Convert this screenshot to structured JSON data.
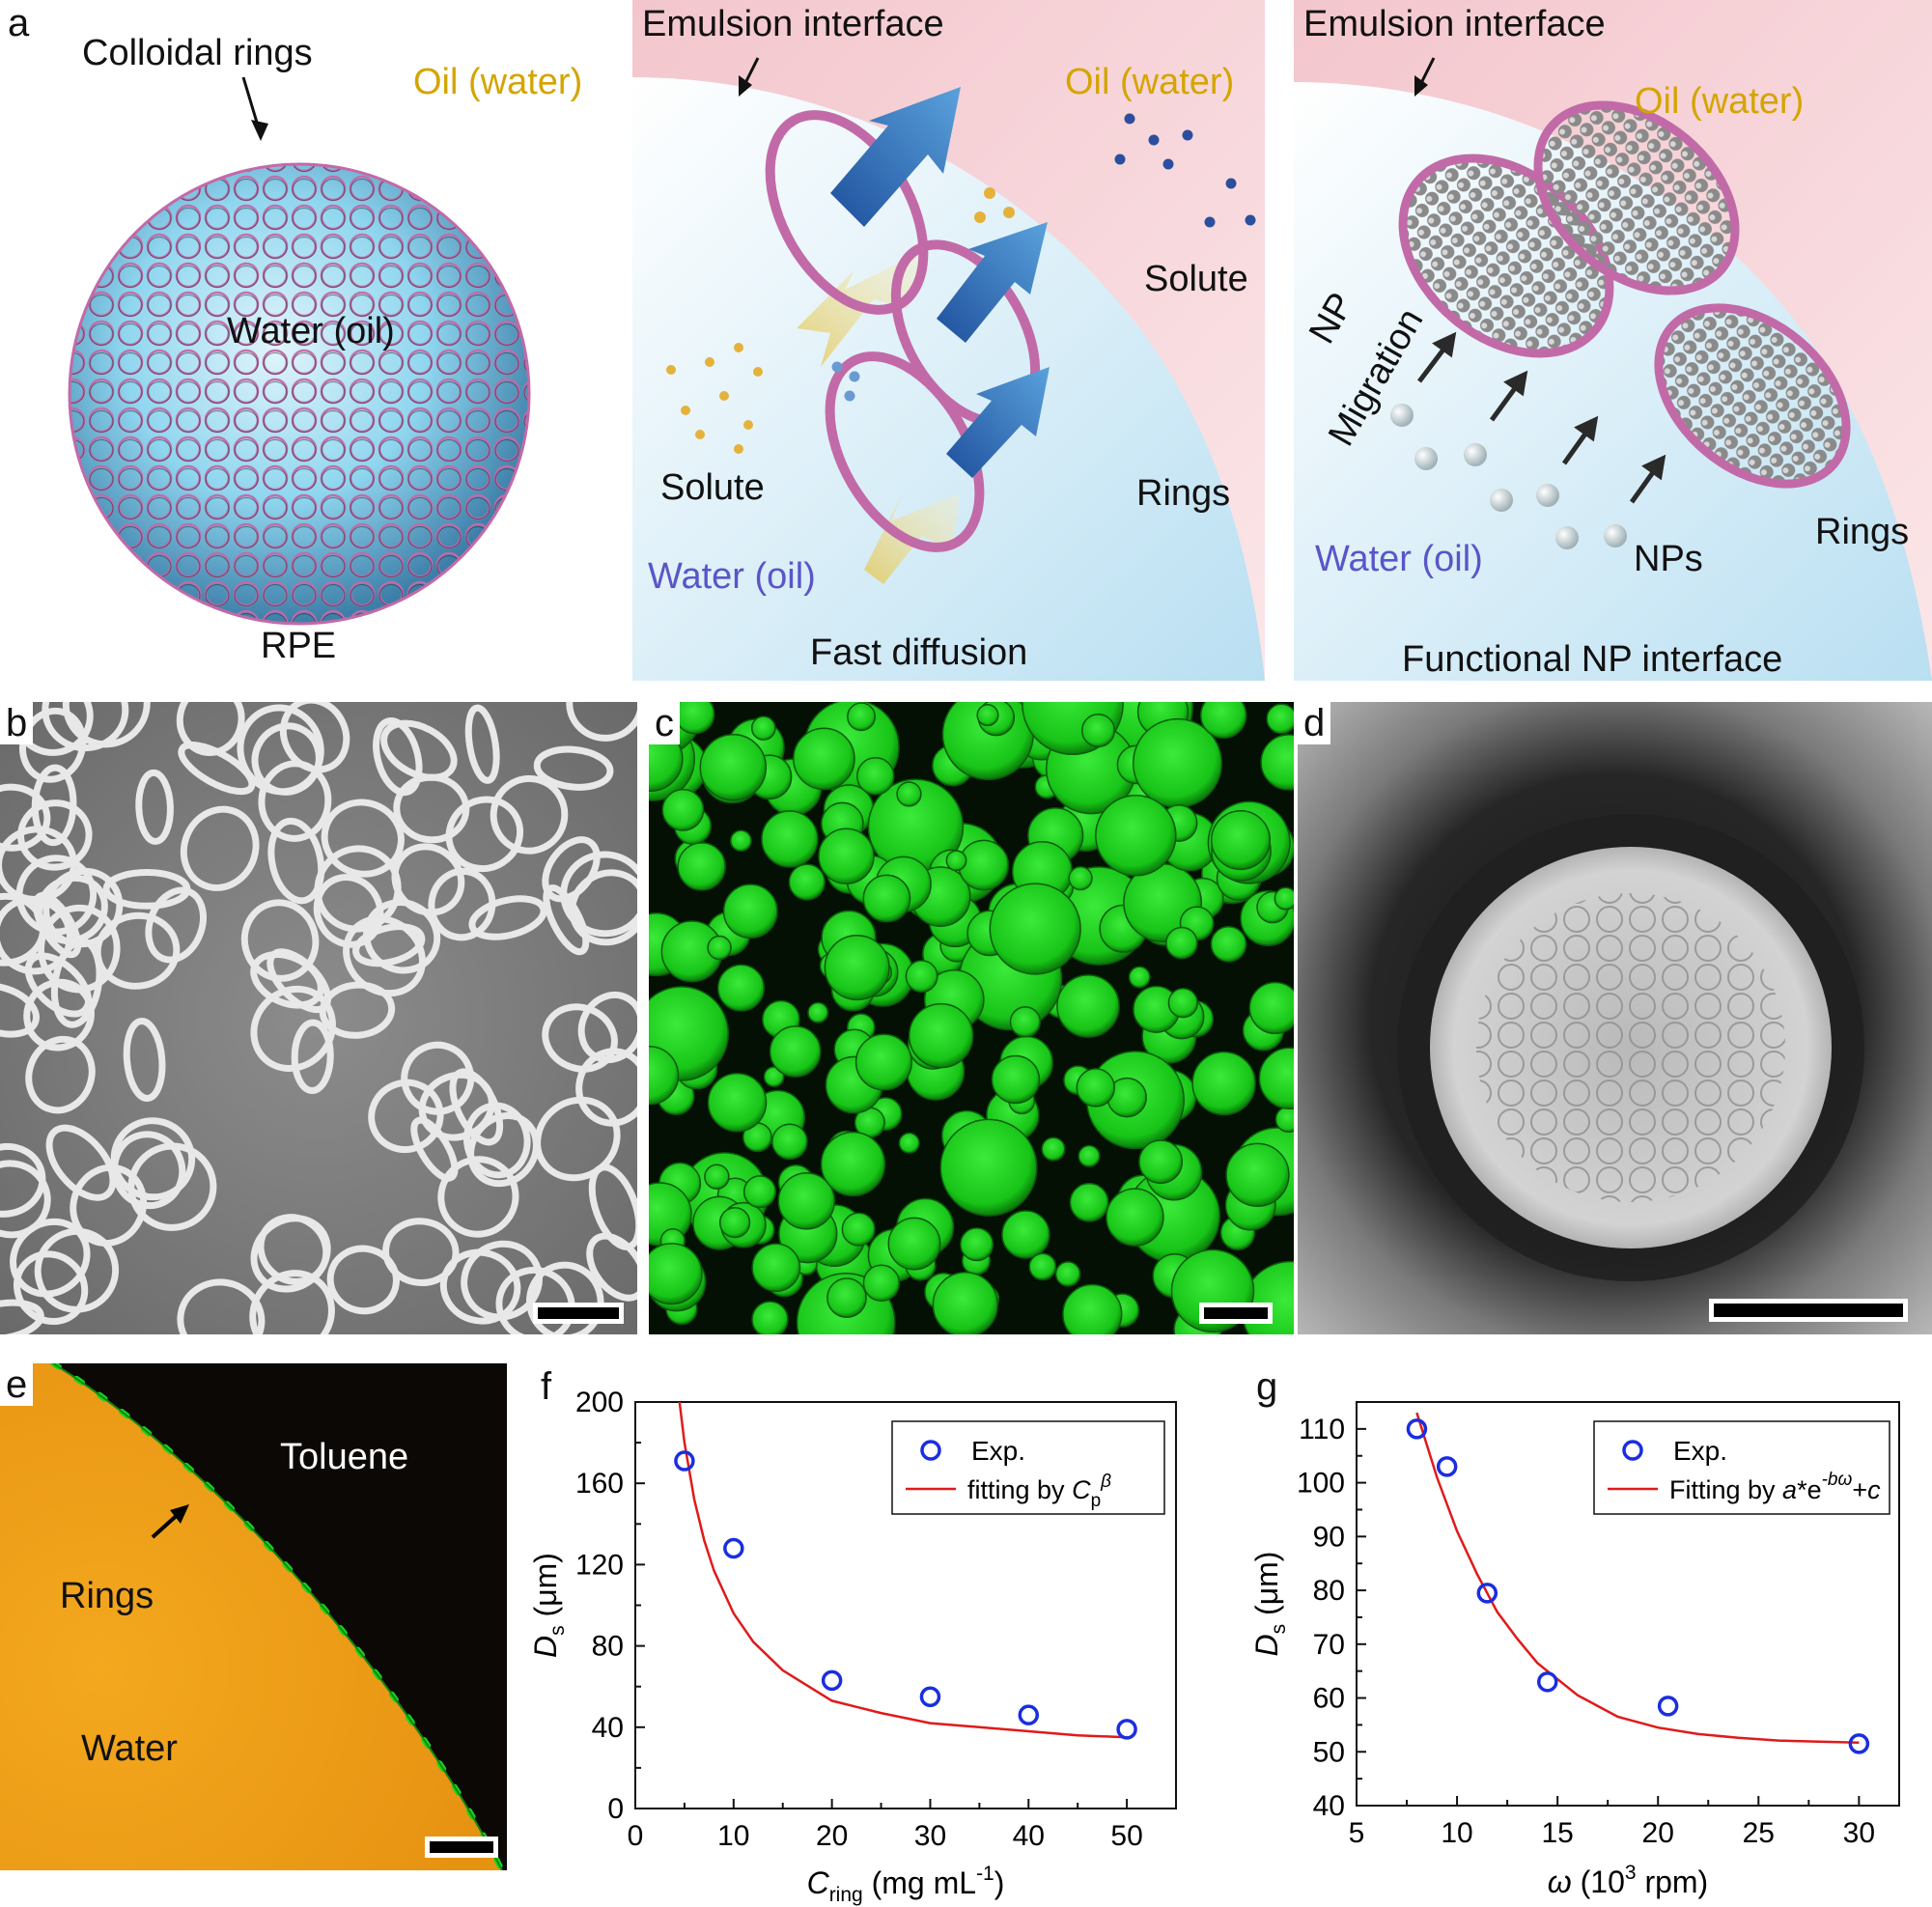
{
  "panels": {
    "a": {
      "letter": "a",
      "left": {
        "colloidal_rings": "Colloidal rings",
        "oil_water": "Oil (water)",
        "water_oil": "Water (oil)",
        "caption": "RPE"
      },
      "middle": {
        "interface": "Emulsion interface",
        "oil_water": "Oil (water)",
        "solute_right": "Solute",
        "solute_left": "Solute",
        "rings": "Rings",
        "water_oil": "Water (oil)",
        "caption": "Fast diffusion"
      },
      "right": {
        "interface": "Emulsion interface",
        "oil_water": "Oil (water)",
        "np": "NP",
        "migration": "Migration",
        "water_oil": "Water (oil)",
        "nps": "NPs",
        "rings": "Rings",
        "caption": "Functional NP interface"
      }
    },
    "b": {
      "letter": "b"
    },
    "c": {
      "letter": "c"
    },
    "d": {
      "letter": "d"
    },
    "e": {
      "letter": "e",
      "toluene": "Toluene",
      "rings": "Rings",
      "water": "Water"
    },
    "f": {
      "letter": "f"
    },
    "g": {
      "letter": "g"
    }
  },
  "colors": {
    "oil": "#f6d3d6",
    "water": "#cfe8f6",
    "ring": "#c26aa8",
    "solute_yellow": "#e4b23a",
    "solute_blue": "#2b4f9e",
    "arrow_blue": "#2f6fbf",
    "arrow_yellow": "#e8d27a",
    "fluor_green": "#19d11b",
    "fit_red": "#e01a1a",
    "marker_blue": "#1a2ee0",
    "orange": "#f0a21a"
  },
  "chart_data": [
    {
      "panel": "f",
      "type": "scatter",
      "xlabel": "C_ring (mg mL^-1)",
      "ylabel": "D_s (μm)",
      "xlim": [
        0,
        55
      ],
      "ylim": [
        0,
        200
      ],
      "x_ticks": [
        0,
        10,
        20,
        30,
        40,
        50
      ],
      "y_ticks": [
        0,
        40,
        80,
        120,
        160,
        200
      ],
      "x_tick_labels": [
        "0",
        "10",
        "20",
        "30",
        "40",
        "50"
      ],
      "y_tick_labels": [
        "0",
        "40",
        "80",
        "120",
        "160",
        "200"
      ],
      "legend_position": "top-right",
      "legend": {
        "exp": "Exp.",
        "fit_prefix": "fitting by "
      },
      "series": [
        {
          "name": "Exp.",
          "kind": "markers",
          "x": [
            5,
            10,
            20,
            30,
            40,
            50
          ],
          "y": [
            171,
            128,
            63,
            55,
            46,
            39
          ]
        },
        {
          "name": "fitting by Cp^β",
          "kind": "line",
          "x": [
            4.5,
            5,
            6,
            7,
            8,
            10,
            12,
            15,
            20,
            25,
            30,
            35,
            40,
            45,
            50
          ],
          "y": [
            200,
            180,
            152,
            132,
            117,
            96,
            82,
            68,
            53,
            47,
            42,
            40,
            38,
            36,
            35
          ]
        }
      ]
    },
    {
      "panel": "g",
      "type": "scatter",
      "xlabel": "ω (10^3 rpm)",
      "ylabel": "D_s (μm)",
      "xlim": [
        5,
        32
      ],
      "ylim": [
        40,
        115
      ],
      "x_ticks": [
        5,
        10,
        15,
        20,
        25,
        30
      ],
      "y_ticks": [
        40,
        50,
        60,
        70,
        80,
        90,
        100,
        110
      ],
      "x_tick_labels": [
        "5",
        "10",
        "15",
        "20",
        "25",
        "30"
      ],
      "y_tick_labels": [
        "40",
        "50",
        "60",
        "70",
        "80",
        "90",
        "100",
        "110"
      ],
      "legend_position": "top-right",
      "legend": {
        "exp": "Exp.",
        "fit_prefix": "Fitting by "
      },
      "series": [
        {
          "name": "Exp.",
          "kind": "markers",
          "x": [
            8,
            9.5,
            11.5,
            14.5,
            20.5,
            30
          ],
          "y": [
            110,
            103,
            79.5,
            63,
            58.5,
            51.5
          ]
        },
        {
          "name": "Fitting by a*e^-bω+c",
          "kind": "line",
          "x": [
            8,
            9,
            10,
            11,
            12,
            13,
            14,
            16,
            18,
            20,
            22,
            24,
            26,
            28,
            30
          ],
          "y": [
            113,
            101,
            91,
            83,
            76,
            71,
            66.5,
            60.5,
            56.5,
            54.5,
            53.3,
            52.6,
            52.1,
            51.9,
            51.7
          ]
        }
      ]
    }
  ]
}
